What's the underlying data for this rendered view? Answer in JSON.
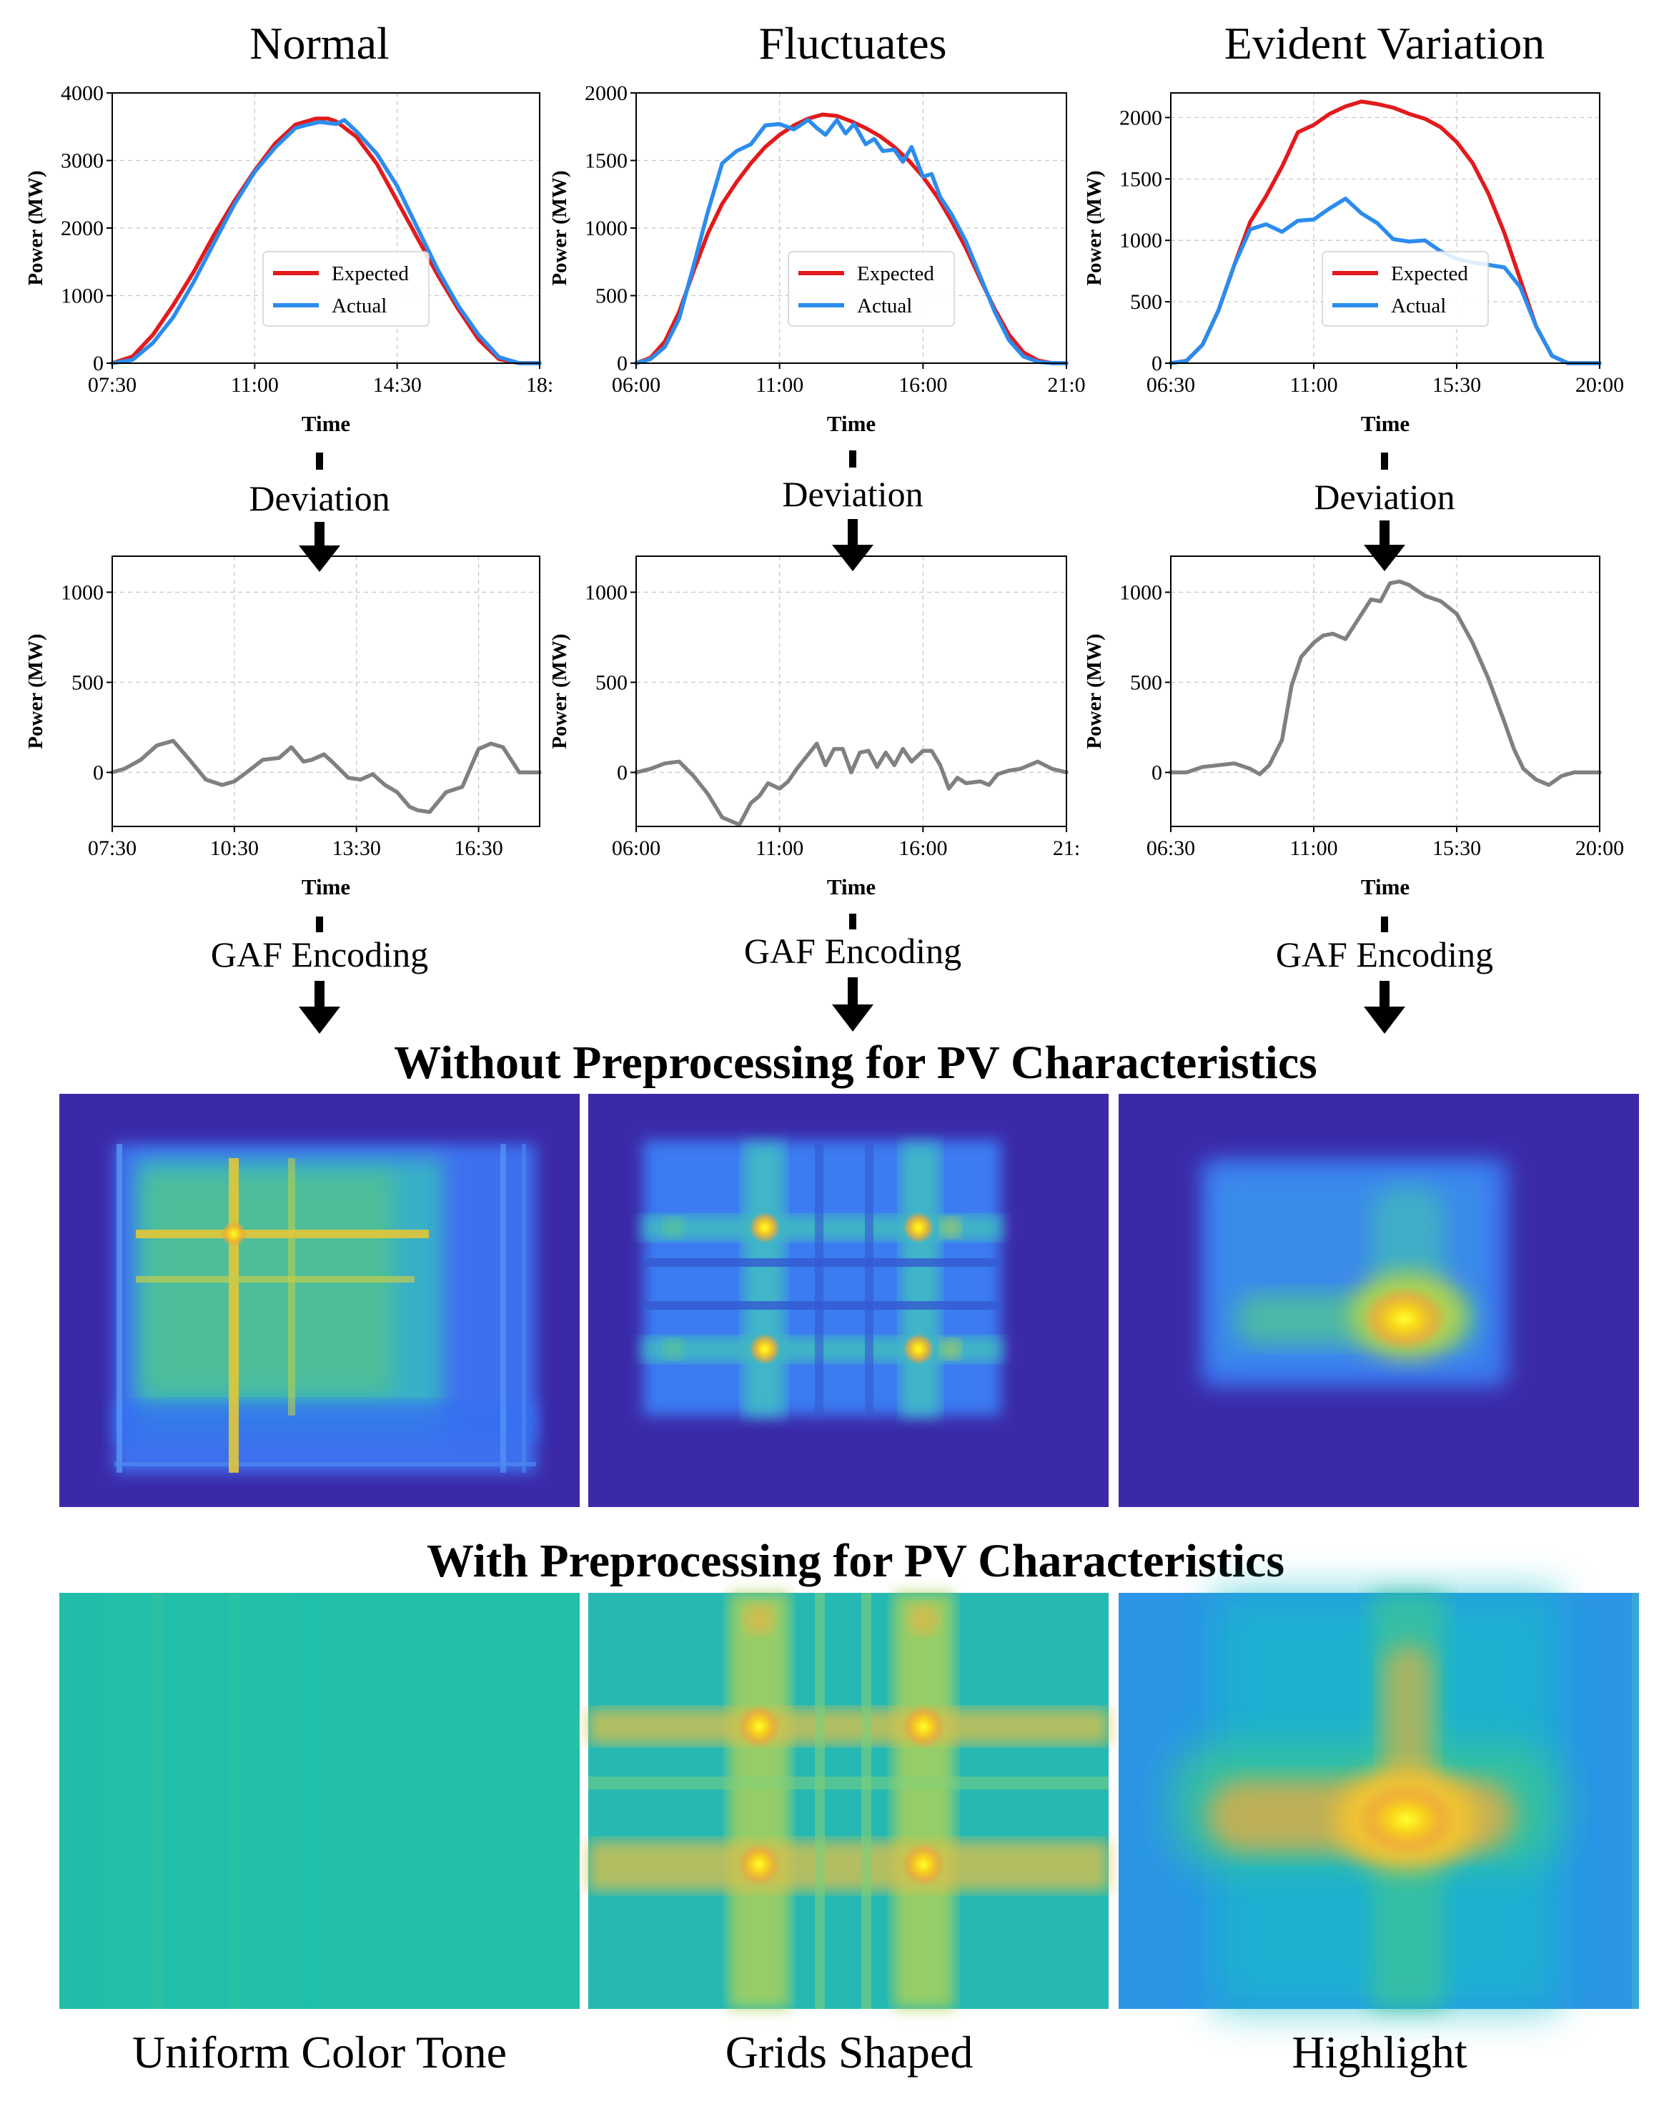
{
  "column_titles": [
    "Normal",
    "Fluctuates",
    "Evident Variation"
  ],
  "steps": {
    "deviation": "Deviation",
    "gaf": "GAF Encoding"
  },
  "section_titles": {
    "without": "Without Preprocessing for PV Characteristics",
    "with": "With Preprocessing for PV Characteristics"
  },
  "captions": [
    "Uniform Color Tone",
    "Grids Shaped",
    "Highlight"
  ],
  "colors": {
    "expected": "#e31a1c",
    "actual": "#2b8cee",
    "deviation": "#808080",
    "gaf_background": "#3b2aa8"
  },
  "chart_data": [
    {
      "type": "line",
      "id": "power-normal",
      "xlabel": "Time",
      "ylabel": "Power (MW)",
      "ylim": [
        0,
        4000
      ],
      "xlim": [
        7.5,
        18
      ],
      "yticks": [
        0,
        1000,
        2000,
        3000,
        4000
      ],
      "yticklabels": [
        "0",
        "1000",
        "2000",
        "3000",
        "4000"
      ],
      "xticks": [
        7.5,
        11,
        14.5,
        18
      ],
      "xticklabels": [
        "07:30",
        "11:00",
        "14:30",
        "18:"
      ],
      "legend": {
        "position": "lower-center",
        "entries": [
          "Expected",
          "Actual"
        ]
      },
      "series": [
        {
          "name": "Expected",
          "color": "#e31a1c",
          "x": [
            7.5,
            8,
            8.5,
            9,
            9.5,
            10,
            10.5,
            11,
            11.5,
            12,
            12.5,
            12.8,
            13,
            13.5,
            14,
            14.5,
            15,
            15.5,
            16,
            16.5,
            17,
            17.5,
            18
          ],
          "y": [
            0,
            100,
            420,
            860,
            1350,
            1900,
            2400,
            2850,
            3250,
            3530,
            3620,
            3620,
            3580,
            3350,
            2950,
            2400,
            1850,
            1300,
            800,
            350,
            60,
            0,
            0
          ]
        },
        {
          "name": "Actual",
          "color": "#2b8cee",
          "x": [
            7.5,
            8,
            8.5,
            9,
            9.5,
            10,
            10.5,
            11,
            11.5,
            12,
            12.3,
            12.6,
            13,
            13.2,
            13.5,
            14,
            14.5,
            15,
            15.5,
            16,
            16.5,
            17,
            17.5,
            18
          ],
          "y": [
            0,
            50,
            300,
            680,
            1200,
            1780,
            2350,
            2830,
            3190,
            3480,
            3530,
            3570,
            3540,
            3600,
            3430,
            3100,
            2620,
            2000,
            1380,
            850,
            420,
            90,
            0,
            0
          ]
        }
      ]
    },
    {
      "type": "line",
      "id": "power-fluctuates",
      "xlabel": "Time",
      "ylabel": "Power (MW)",
      "ylim": [
        0,
        2000
      ],
      "xlim": [
        6,
        21
      ],
      "yticks": [
        0,
        500,
        1000,
        1500,
        2000
      ],
      "yticklabels": [
        "0",
        "500",
        "1000",
        "1500",
        "2000"
      ],
      "xticks": [
        6,
        11,
        16,
        21
      ],
      "xticklabels": [
        "06:00",
        "11:00",
        "16:00",
        "21:0"
      ],
      "legend": {
        "position": "lower-center",
        "entries": [
          "Expected",
          "Actual"
        ]
      },
      "series": [
        {
          "name": "Expected",
          "color": "#e31a1c",
          "x": [
            6,
            6.5,
            7,
            7.5,
            8,
            8.5,
            9,
            9.5,
            10,
            10.5,
            11,
            11.5,
            12,
            12.5,
            13,
            13.5,
            14,
            14.5,
            15,
            15.5,
            16,
            16.5,
            17,
            17.5,
            18,
            18.5,
            19,
            19.5,
            20,
            20.5,
            21
          ],
          "y": [
            0,
            40,
            160,
            380,
            680,
            960,
            1180,
            1340,
            1480,
            1600,
            1690,
            1760,
            1810,
            1840,
            1830,
            1790,
            1740,
            1680,
            1600,
            1500,
            1380,
            1230,
            1050,
            850,
            620,
            400,
            210,
            80,
            20,
            0,
            0
          ]
        },
        {
          "name": "Actual",
          "color": "#2b8cee",
          "x": [
            6,
            6.5,
            7,
            7.5,
            8,
            8.5,
            9,
            9.5,
            10,
            10.5,
            11,
            11.5,
            12,
            12.3,
            12.6,
            13,
            13.3,
            13.6,
            14,
            14.3,
            14.6,
            15,
            15.3,
            15.6,
            16,
            16.3,
            16.6,
            17,
            17.5,
            18,
            18.5,
            19,
            19.5,
            20,
            20.5,
            21
          ],
          "y": [
            0,
            30,
            120,
            330,
            720,
            1120,
            1480,
            1570,
            1620,
            1760,
            1770,
            1730,
            1800,
            1740,
            1690,
            1800,
            1700,
            1770,
            1620,
            1660,
            1570,
            1580,
            1490,
            1600,
            1380,
            1400,
            1230,
            1100,
            900,
            640,
            380,
            170,
            50,
            10,
            0,
            0
          ]
        }
      ]
    },
    {
      "type": "line",
      "id": "power-evident",
      "xlabel": "Time",
      "ylabel": "Power (MW)",
      "ylim": [
        0,
        2200
      ],
      "xlim": [
        6.5,
        20
      ],
      "yticks": [
        0,
        500,
        1000,
        1500,
        2000
      ],
      "yticklabels": [
        "0",
        "500",
        "1000",
        "1500",
        "2000"
      ],
      "xticks": [
        6.5,
        11,
        15.5,
        20
      ],
      "xticklabels": [
        "06:30",
        "11:00",
        "15:30",
        "20:00"
      ],
      "legend": {
        "position": "lower-center",
        "entries": [
          "Expected",
          "Actual"
        ]
      },
      "series": [
        {
          "name": "Expected",
          "color": "#e31a1c",
          "x": [
            6.5,
            7,
            7.5,
            8,
            8.5,
            9,
            9.5,
            10,
            10.5,
            11,
            11.5,
            12,
            12.5,
            13,
            13.5,
            14,
            14.5,
            15,
            15.5,
            16,
            16.5,
            17,
            17.5,
            18,
            18.5,
            19,
            19.5,
            20
          ],
          "y": [
            0,
            20,
            150,
            430,
            800,
            1150,
            1360,
            1600,
            1880,
            1940,
            2030,
            2090,
            2130,
            2110,
            2080,
            2030,
            1990,
            1920,
            1800,
            1630,
            1380,
            1060,
            680,
            300,
            60,
            0,
            0,
            0
          ]
        },
        {
          "name": "Actual",
          "color": "#2b8cee",
          "x": [
            6.5,
            7,
            7.5,
            8,
            8.5,
            9,
            9.5,
            10,
            10.5,
            11,
            11.5,
            12,
            12.5,
            13,
            13.5,
            14,
            14.5,
            15,
            15.5,
            16,
            16.5,
            17,
            17.5,
            18,
            18.5,
            19,
            19.5,
            20
          ],
          "y": [
            0,
            20,
            150,
            430,
            800,
            1090,
            1130,
            1070,
            1160,
            1170,
            1260,
            1340,
            1220,
            1140,
            1010,
            990,
            1000,
            910,
            850,
            820,
            800,
            780,
            620,
            300,
            60,
            0,
            0,
            0
          ]
        }
      ]
    },
    {
      "type": "line",
      "id": "deviation-normal",
      "xlabel": "Time",
      "ylabel": "Power (MW)",
      "ylim": [
        -300,
        1200
      ],
      "xlim": [
        7.5,
        18
      ],
      "yticks": [
        0,
        500,
        1000
      ],
      "yticklabels": [
        "0",
        "500",
        "1000"
      ],
      "xticks": [
        7.5,
        10.5,
        13.5,
        16.5
      ],
      "xticklabels": [
        "07:30",
        "10:30",
        "13:30",
        "16:30"
      ],
      "series": [
        {
          "name": "Deviation",
          "color": "#808080",
          "x": [
            7.5,
            7.8,
            8.2,
            8.6,
            9.0,
            9.4,
            9.8,
            10.2,
            10.5,
            10.8,
            11.2,
            11.6,
            11.9,
            12.2,
            12.4,
            12.7,
            12.9,
            13.3,
            13.6,
            13.9,
            14.2,
            14.5,
            14.8,
            15.0,
            15.3,
            15.7,
            16.1,
            16.5,
            16.8,
            17.1,
            17.5,
            18
          ],
          "y": [
            0,
            20,
            70,
            150,
            175,
            70,
            -40,
            -70,
            -50,
            0,
            70,
            80,
            140,
            60,
            70,
            100,
            60,
            -30,
            -40,
            -10,
            -70,
            -110,
            -190,
            -210,
            -220,
            -110,
            -80,
            130,
            160,
            140,
            0,
            0
          ]
        }
      ]
    },
    {
      "type": "line",
      "id": "deviation-fluctuates",
      "xlabel": "Time",
      "ylabel": "Power (MW)",
      "ylim": [
        -300,
        1200
      ],
      "xlim": [
        6,
        21
      ],
      "yticks": [
        0,
        500,
        1000
      ],
      "yticklabels": [
        "0",
        "500",
        "1000"
      ],
      "xticks": [
        6,
        11,
        16,
        21
      ],
      "xticklabels": [
        "06:00",
        "11:00",
        "16:00",
        "21:"
      ],
      "series": [
        {
          "name": "Deviation",
          "color": "#808080",
          "x": [
            6,
            6.5,
            7,
            7.5,
            8,
            8.5,
            9,
            9.3,
            9.6,
            10,
            10.3,
            10.6,
            11,
            11.3,
            11.6,
            12,
            12.3,
            12.6,
            12.9,
            13.2,
            13.5,
            13.8,
            14.1,
            14.4,
            14.7,
            15,
            15.3,
            15.6,
            16,
            16.3,
            16.6,
            16.9,
            17.2,
            17.5,
            18,
            18.3,
            18.6,
            19,
            19.4,
            20,
            20.5,
            21
          ],
          "y": [
            0,
            20,
            50,
            60,
            -20,
            -120,
            -250,
            -270,
            -290,
            -170,
            -130,
            -60,
            -90,
            -50,
            20,
            100,
            160,
            40,
            130,
            130,
            0,
            110,
            120,
            30,
            110,
            40,
            130,
            60,
            120,
            120,
            40,
            -90,
            -30,
            -60,
            -50,
            -70,
            -10,
            10,
            20,
            60,
            20,
            0
          ]
        }
      ]
    },
    {
      "type": "line",
      "id": "deviation-evident",
      "xlabel": "Time",
      "ylabel": "Power (MW)",
      "ylim": [
        -300,
        1200
      ],
      "xlim": [
        6.5,
        20
      ],
      "yticks": [
        0,
        500,
        1000
      ],
      "yticklabels": [
        "0",
        "500",
        "1000"
      ],
      "xticks": [
        6.5,
        11,
        15.5,
        20
      ],
      "xticklabels": [
        "06:30",
        "11:00",
        "15:30",
        "20:00"
      ],
      "series": [
        {
          "name": "Deviation",
          "color": "#808080",
          "x": [
            6.5,
            7,
            7.5,
            8,
            8.5,
            9,
            9.3,
            9.6,
            10,
            10.3,
            10.6,
            11,
            11.3,
            11.6,
            12,
            12.4,
            12.8,
            13.1,
            13.4,
            13.7,
            14,
            14.5,
            15,
            15.5,
            16,
            16.5,
            17,
            17.3,
            17.6,
            18,
            18.4,
            18.8,
            19.2,
            20
          ],
          "y": [
            0,
            0,
            30,
            40,
            50,
            20,
            -10,
            40,
            180,
            480,
            640,
            720,
            760,
            770,
            740,
            850,
            960,
            950,
            1050,
            1060,
            1040,
            980,
            950,
            880,
            720,
            520,
            280,
            130,
            20,
            -40,
            -70,
            -20,
            0,
            0
          ]
        }
      ]
    },
    {
      "type": "heatmap",
      "id": "gaf-without-normal",
      "description_pattern": "broad uniform green/cyan block with a yellow cross",
      "v_lines": [
        0.38,
        0.55
      ],
      "h_lines": [
        0.34,
        0.46
      ],
      "peak": [
        0.38,
        0.34
      ]
    },
    {
      "type": "heatmap",
      "id": "gaf-without-fluctuates",
      "v_lines": [
        0.36,
        0.66
      ],
      "h_lines": [
        0.33,
        0.62
      ],
      "peak": [
        0.36,
        0.33
      ]
    },
    {
      "type": "heatmap",
      "id": "gaf-without-evident",
      "h_lines": [
        0.56
      ],
      "v_lines": [
        0.55
      ],
      "peak": [
        0.55,
        0.56
      ]
    },
    {
      "type": "heatmap",
      "id": "gaf-with-normal",
      "v_lines": [],
      "h_lines": []
    },
    {
      "type": "heatmap",
      "id": "gaf-with-fluctuates",
      "v_lines": [
        0.33,
        0.64
      ],
      "h_lines": [
        0.3,
        0.65
      ]
    },
    {
      "type": "heatmap",
      "id": "gaf-with-evident",
      "v_lines": [
        0.55
      ],
      "h_lines": [
        0.56
      ],
      "peak": [
        0.55,
        0.56
      ]
    }
  ]
}
